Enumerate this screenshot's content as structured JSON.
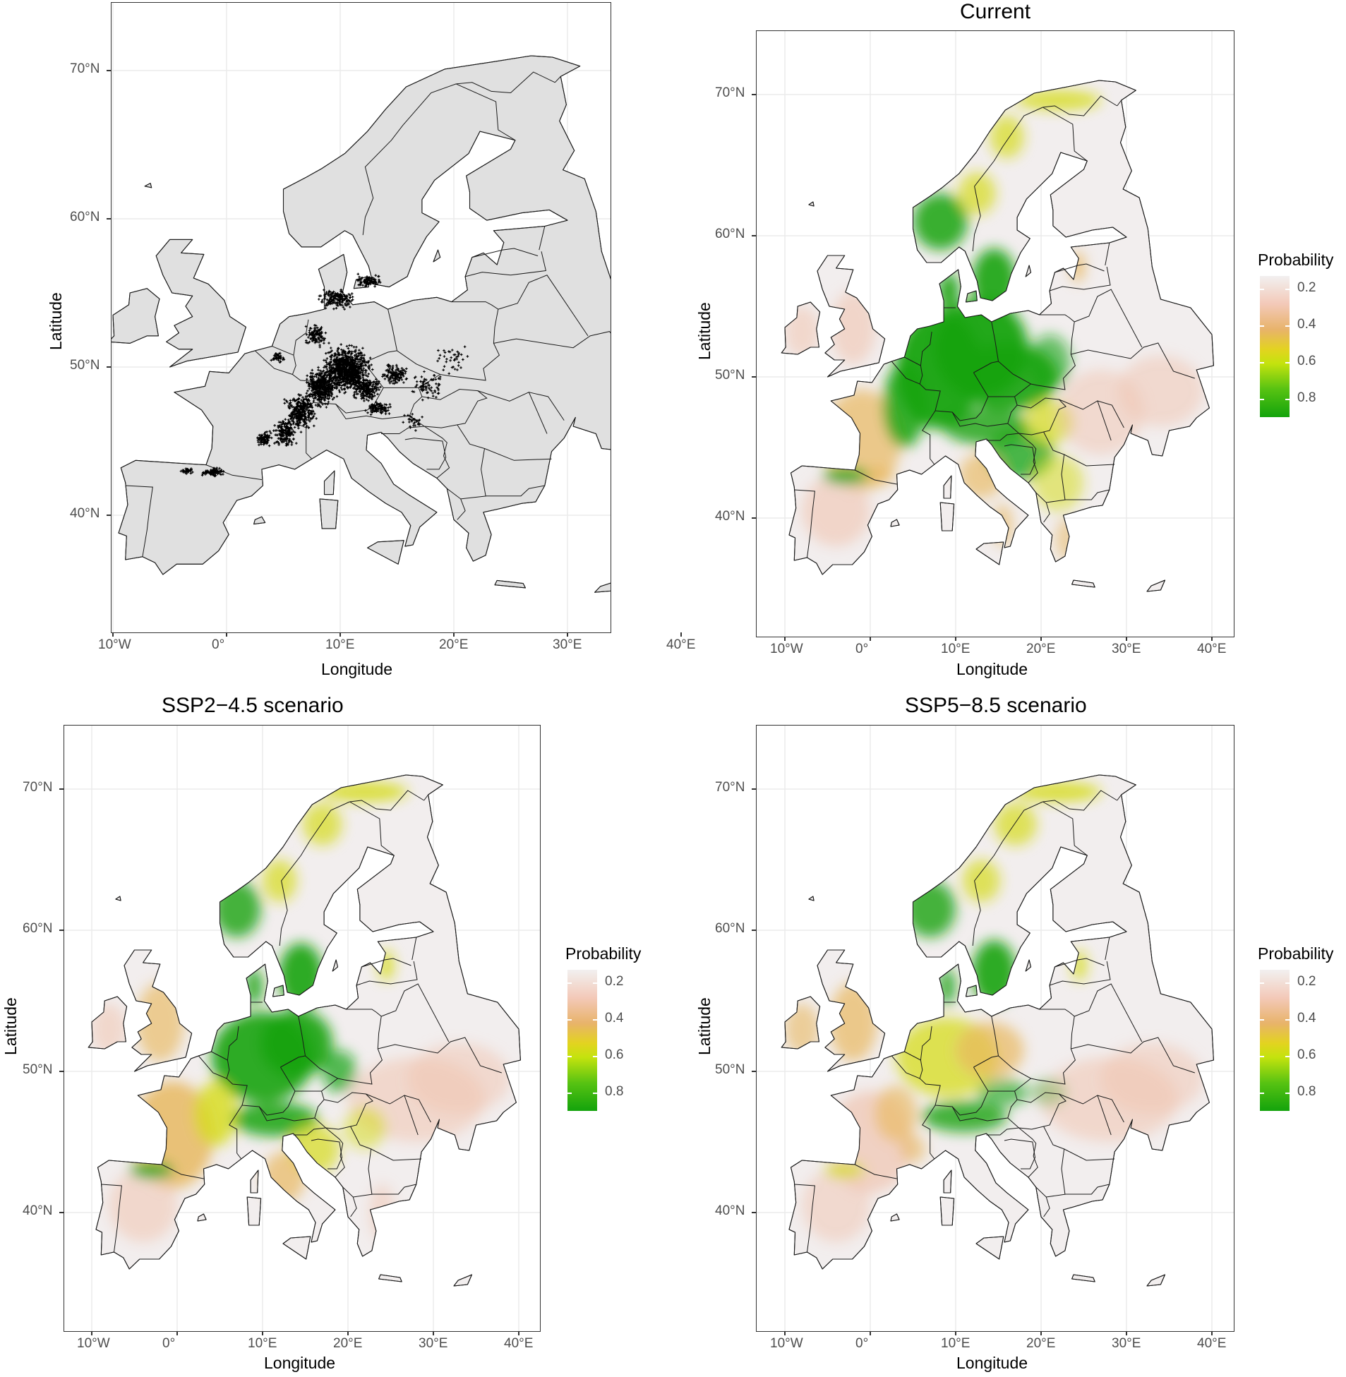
{
  "colors": {
    "land": "#e0e0e0",
    "border": "#1a1a1a",
    "grid": "#ebebeb",
    "occurrence": "#000000",
    "prob_low": "#f2eeee",
    "prob_mid_low": "#f0c4b0",
    "prob_mid": "#e8b860",
    "prob_mid_high": "#d6dc1c",
    "prob_high": "#15a30b"
  },
  "axes": {
    "x_label": "Longitude",
    "y_label": "Latitude",
    "x_ticks": [
      "10°W",
      "0°",
      "10°E",
      "20°E",
      "30°E",
      "40°E"
    ],
    "x_values": [
      -10,
      0,
      10,
      20,
      30,
      40
    ],
    "y_ticks": [
      "40°N",
      "50°N",
      "60°N",
      "70°N"
    ],
    "y_values": [
      40,
      50,
      60,
      70
    ],
    "xlim": [
      -13,
      43
    ],
    "ylim": [
      32.5,
      74
    ]
  },
  "legend": {
    "title": "Probability",
    "ticks": [
      "0.2",
      "0.4",
      "0.6",
      "0.8"
    ],
    "tick_values": [
      0.2,
      0.4,
      0.6,
      0.8
    ]
  },
  "panels": [
    {
      "id": "occurrences",
      "title": "",
      "type": "points"
    },
    {
      "id": "current",
      "title": "Current",
      "type": "suitability"
    },
    {
      "id": "ssp245",
      "title": "SSP2−4.5 scenario",
      "type": "suitability"
    },
    {
      "id": "ssp585",
      "title": "SSP5−8.5 scenario",
      "type": "suitability"
    }
  ]
}
